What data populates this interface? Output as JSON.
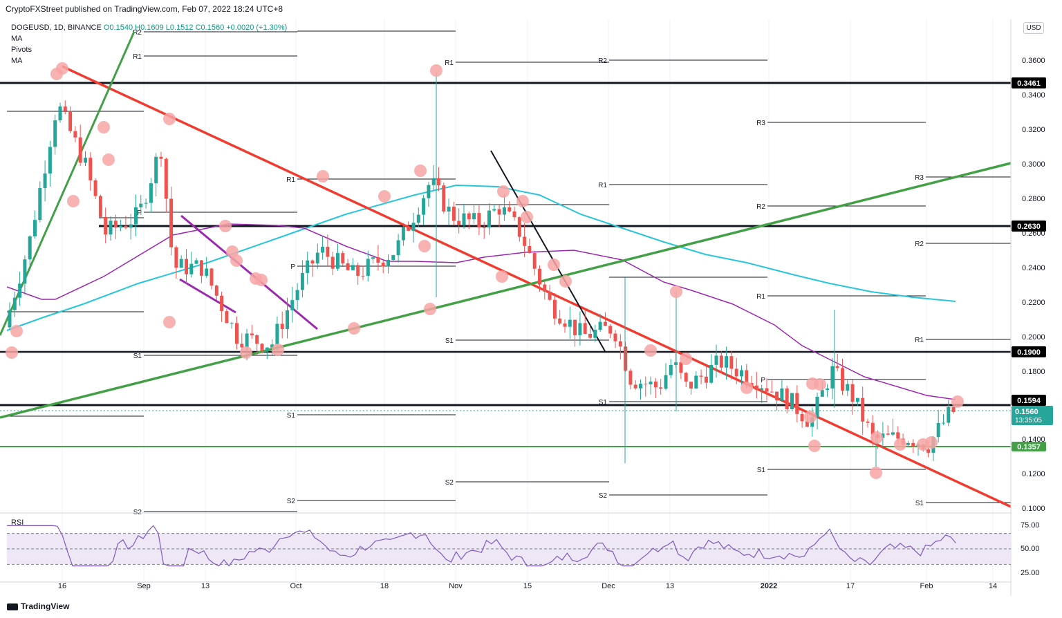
{
  "header": {
    "publisher_line": "CryptoFXStreet published on TradingView.com, Feb 07, 2022 18:24 UTC+8"
  },
  "legend": {
    "symbol": "DOGEUSD, 1D, BINANCE",
    "ohlc": "O0.1540  H0.1609  L0.1512  C0.1560  +0.0020 (+1.30%)",
    "indicators": [
      "MA",
      "Pivots",
      "MA"
    ]
  },
  "price_axis": {
    "currency": "USD",
    "ticks": [
      "0.3600",
      "0.3400",
      "0.3200",
      "0.3000",
      "0.2800",
      "0.2600",
      "0.2400",
      "0.2200",
      "0.2000",
      "0.1800",
      "0.1400",
      "0.1200",
      "0.1000"
    ],
    "badges": {
      "level_1": "0.3461",
      "level_2": "0.2630",
      "level_3": "0.1900",
      "level_4": "0.1594",
      "last_price": "0.1560",
      "countdown": "13:35:05",
      "level_5": "0.1357"
    }
  },
  "time_axis": {
    "labels": [
      "16",
      "Sep",
      "13",
      "Oct",
      "18",
      "Nov",
      "15",
      "Dec",
      "13",
      "2022",
      "17",
      "Feb",
      "14"
    ]
  },
  "rsi": {
    "label": "RSI",
    "ticks": [
      "75.00",
      "50.00",
      "25.00"
    ]
  },
  "footer": {
    "brand": "TradingView"
  },
  "colors": {
    "up": "#26a69a",
    "down": "#ef5350",
    "ma_fast": "#9c27b0",
    "ma_slow": "#26c6da",
    "trend_red": "#f23b2f",
    "trend_green": "#43a047",
    "channel_purple": "#9c27b0",
    "marker": "#f7a5a5",
    "rsi_line": "#7e57c2",
    "rsi_band": "#ede7f6"
  },
  "chart_data": {
    "type": "candlestick",
    "symbol": "DOGEUSD",
    "interval": "1D",
    "y_range": [
      0.1,
      0.362
    ],
    "horizontal_levels": [
      0.3461,
      0.263,
      0.19,
      0.1594,
      0.1357
    ],
    "pivot_labels": [
      "R3",
      "R2",
      "R1",
      "P",
      "S1",
      "S2"
    ],
    "rsi_range": [
      25,
      75
    ]
  }
}
